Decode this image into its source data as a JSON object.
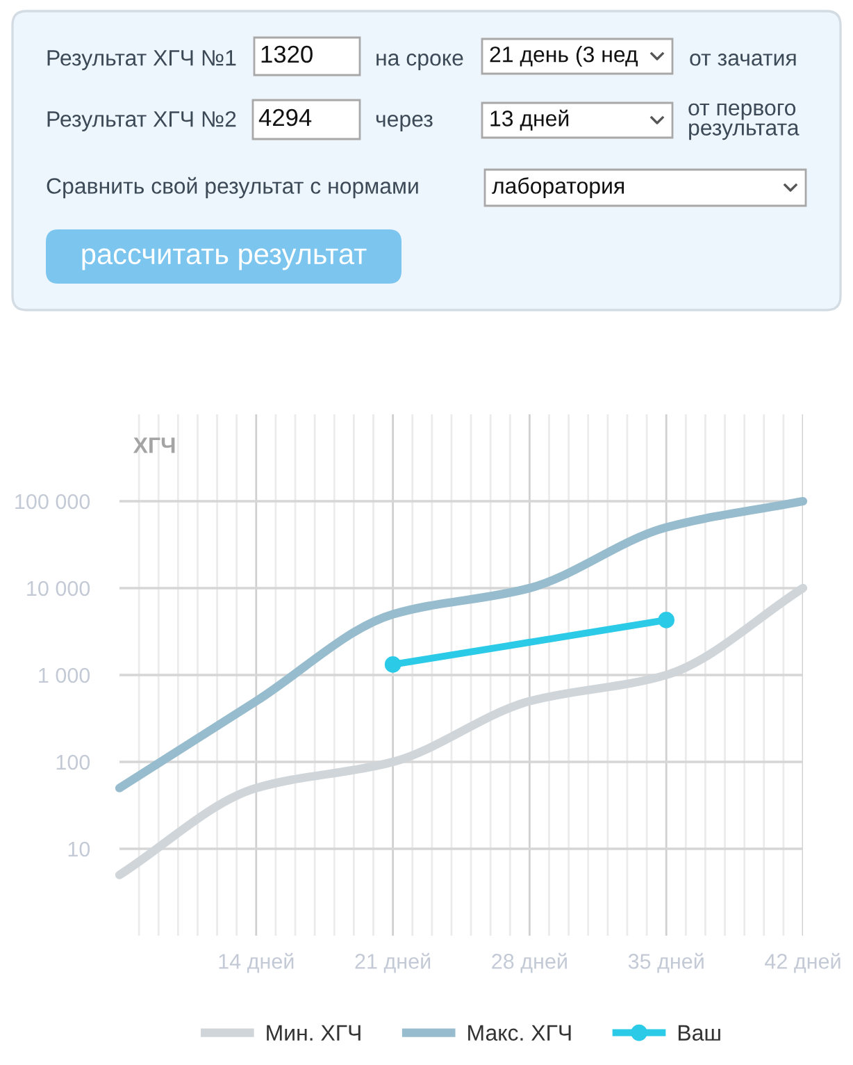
{
  "chart_data": [
    {
      "type": "other",
      "annotations": [
        "Результат ХГЧ №1",
        "1320",
        "на сроке",
        "21 день (3 нед",
        "от зачатия",
        "Результат ХГЧ №2",
        "4294",
        "через",
        "13 дней",
        "от первого\nрезультата",
        "Сравнить свой результат с нормами",
        "лаборатория",
        "рассчитать результат"
      ]
    },
    {
      "type": "line",
      "ylabel": "ХГЧ",
      "x": [
        7,
        14,
        21,
        28,
        35,
        42
      ],
      "series": [
        {
          "name": "Мин. ХГЧ",
          "color": "#cfd5d9",
          "values": [
            5,
            50,
            100,
            500,
            1000,
            10000
          ]
        },
        {
          "name": "Макс. ХГЧ",
          "color": "#97bccd",
          "values": [
            50,
            500,
            5000,
            10000,
            50000,
            100000
          ]
        },
        {
          "name": "Ваш",
          "color": "#2bcbe8",
          "x": [
            21,
            35
          ],
          "values": [
            1320,
            4294
          ],
          "marker": "circle"
        }
      ],
      "log": "y",
      "xlim": [
        7,
        42
      ],
      "ylim": [
        1,
        1000000
      ],
      "xticks": [
        {
          "value": 8,
          "label": null
        },
        {
          "value": 9,
          "label": null
        },
        {
          "value": 10,
          "label": null
        },
        {
          "value": 11,
          "label": null
        },
        {
          "value": 12,
          "label": null
        },
        {
          "value": 13,
          "label": null
        },
        {
          "value": 14,
          "label": "14 дней"
        },
        {
          "value": 15,
          "label": null
        },
        {
          "value": 16,
          "label": null
        },
        {
          "value": 17,
          "label": null
        },
        {
          "value": 18,
          "label": null
        },
        {
          "value": 19,
          "label": null
        },
        {
          "value": 20,
          "label": null
        },
        {
          "value": 21,
          "label": "21 дней"
        },
        {
          "value": 22,
          "label": null
        },
        {
          "value": 23,
          "label": null
        },
        {
          "value": 24,
          "label": null
        },
        {
          "value": 25,
          "label": null
        },
        {
          "value": 26,
          "label": null
        },
        {
          "value": 27,
          "label": null
        },
        {
          "value": 28,
          "label": "28 дней"
        },
        {
          "value": 29,
          "label": null
        },
        {
          "value": 30,
          "label": null
        },
        {
          "value": 31,
          "label": null
        },
        {
          "value": 32,
          "label": null
        },
        {
          "value": 33,
          "label": null
        },
        {
          "value": 34,
          "label": null
        },
        {
          "value": 35,
          "label": "35 дней"
        },
        {
          "value": 36,
          "label": null
        },
        {
          "value": 37,
          "label": null
        },
        {
          "value": 38,
          "label": null
        },
        {
          "value": 39,
          "label": null
        },
        {
          "value": 40,
          "label": null
        },
        {
          "value": 41,
          "label": null
        },
        {
          "value": 42,
          "label": "42 дней"
        }
      ],
      "yticks": [
        {
          "value": 10,
          "label": "10"
        },
        {
          "value": 100,
          "label": "100"
        },
        {
          "value": 1000,
          "label": "1 000"
        },
        {
          "value": 10000,
          "label": "10 000"
        },
        {
          "value": 100000,
          "label": "100 000"
        }
      ],
      "grid": true,
      "legend": "bottom"
    }
  ]
}
